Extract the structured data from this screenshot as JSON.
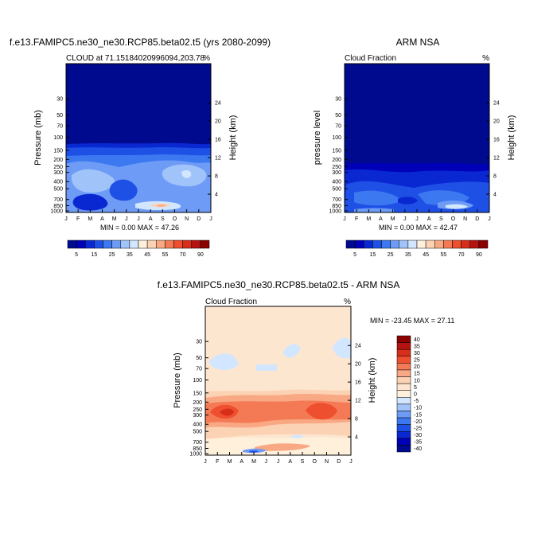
{
  "chart_data": [
    {
      "type": "heatmap",
      "title": "f.e13.FAMIPC5.ne30_ne30.RCP85.beta02.t5 (yrs 2080-2099)",
      "subtitle_left": "CLOUD at 71.15184020996094,203.78",
      "subtitle_right": "%",
      "ylabel": "Pressure (mb)",
      "ylabel_right": "Height (km)",
      "stats": "MIN =   0.00 MAX =  47.26",
      "x_ticks": [
        "J",
        "F",
        "M",
        "A",
        "M",
        "J",
        "J",
        "A",
        "S",
        "O",
        "N",
        "D",
        "J"
      ],
      "y_ticks": [
        "30",
        "50",
        "70",
        "100",
        "150",
        "200",
        "250",
        "300",
        "400",
        "500",
        "700",
        "850",
        "1000"
      ],
      "y_ticks_right": [
        "24",
        "20",
        "16",
        "12",
        "8",
        "4"
      ],
      "colorbar_labels": [
        "5",
        "15",
        "25",
        "35",
        "45",
        "55",
        "70",
        "90"
      ],
      "colorbar_orientation": "horizontal",
      "colors": [
        "#000a8f",
        "#0000b8",
        "#0a28d2",
        "#1e50e6",
        "#3c78f0",
        "#6e9bf5",
        "#a0c3fa",
        "#d2e6ff",
        "#fff0dc",
        "#fcd2b4",
        "#f8a882",
        "#f47a55",
        "#ee4f2f",
        "#d72e1a",
        "#b41410",
        "#8c0000"
      ]
    },
    {
      "type": "heatmap",
      "title": "ARM NSA",
      "subtitle_left": "Cloud Fraction",
      "subtitle_right": "%",
      "ylabel": "pressure level",
      "ylabel_right": "Height (km)",
      "stats": "MIN =   0.00 MAX =  42.47",
      "x_ticks": [
        "J",
        "F",
        "M",
        "A",
        "M",
        "J",
        "J",
        "A",
        "S",
        "O",
        "N",
        "D",
        "J"
      ],
      "y_ticks": [
        "30",
        "50",
        "70",
        "100",
        "150",
        "200",
        "250",
        "300",
        "400",
        "500",
        "700",
        "850",
        "1000"
      ],
      "y_ticks_right": [
        "24",
        "20",
        "16",
        "12",
        "8",
        "4"
      ],
      "colorbar_labels": [
        "5",
        "15",
        "25",
        "35",
        "45",
        "55",
        "70",
        "90"
      ],
      "colorbar_orientation": "horizontal"
    },
    {
      "type": "heatmap",
      "title": "f.e13.FAMIPC5.ne30_ne30.RCP85.beta02.t5 - ARM NSA",
      "subtitle_left": "Cloud Fraction",
      "subtitle_right": "%",
      "ylabel": "Pressure (mb)",
      "ylabel_right": "Height (km)",
      "stats": "MIN = -23.45 MAX =  27.11",
      "x_ticks": [
        "J",
        "F",
        "M",
        "A",
        "M",
        "J",
        "J",
        "A",
        "S",
        "O",
        "N",
        "D",
        "J"
      ],
      "y_ticks": [
        "30",
        "50",
        "70",
        "100",
        "150",
        "200",
        "250",
        "300",
        "400",
        "500",
        "700",
        "850",
        "1000"
      ],
      "y_ticks_right": [
        "24",
        "20",
        "16",
        "12",
        "8",
        "4"
      ],
      "colorbar_labels": [
        "40",
        "35",
        "30",
        "25",
        "20",
        "15",
        "10",
        "5",
        "0",
        "-5",
        "-10",
        "-15",
        "-20",
        "-25",
        "-30",
        "-35",
        "-40"
      ],
      "colorbar_orientation": "vertical",
      "colors": [
        "#8c0000",
        "#b41410",
        "#d72e1a",
        "#ee4f2f",
        "#f47a55",
        "#f8a882",
        "#fcd2b4",
        "#fde6cf",
        "#fff0dc",
        "#d2e6ff",
        "#a0c3fa",
        "#6e9bf5",
        "#3c78f0",
        "#1e50e6",
        "#0a28d2",
        "#0000b8",
        "#000a8f"
      ]
    }
  ]
}
